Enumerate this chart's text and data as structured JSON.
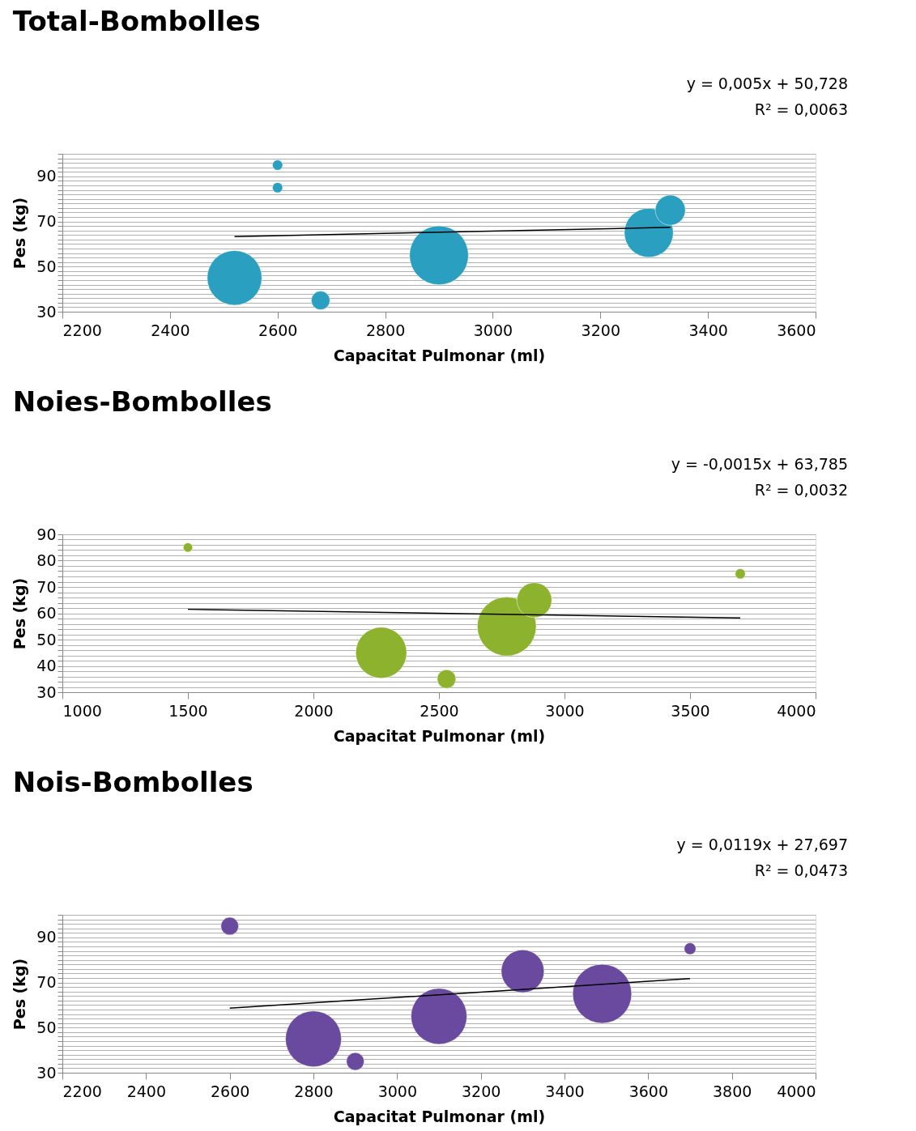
{
  "chart_data": [
    {
      "type": "bubble",
      "title": "Total-Bombolles",
      "xlabel": "Capacitat Pulmonar (ml)",
      "ylabel": "Pes (kg)",
      "annotations": [
        "y = 0,005x + 50,728",
        "R² = 0,0063"
      ],
      "xlim": [
        2200,
        3600
      ],
      "xticks": [
        2200,
        2400,
        2600,
        2800,
        3000,
        3200,
        3400,
        3600
      ],
      "ylim": [
        30,
        100
      ],
      "yticks": [
        30,
        {
          "value": 32,
          "label": null
        },
        {
          "value": 34,
          "label": null
        },
        {
          "value": 36,
          "label": null
        },
        {
          "value": 38,
          "label": null
        },
        {
          "value": 40,
          "label": null
        },
        {
          "value": 42,
          "label": null
        },
        {
          "value": 44,
          "label": null
        },
        {
          "value": 46,
          "label": null
        },
        {
          "value": 48,
          "label": null
        },
        50,
        {
          "value": 52,
          "label": null
        },
        {
          "value": 54,
          "label": null
        },
        {
          "value": 56,
          "label": null
        },
        {
          "value": 58,
          "label": null
        },
        {
          "value": 60,
          "label": null
        },
        {
          "value": 62,
          "label": null
        },
        {
          "value": 64,
          "label": null
        },
        {
          "value": 66,
          "label": null
        },
        {
          "value": 68,
          "label": null
        },
        70,
        {
          "value": 72,
          "label": null
        },
        {
          "value": 74,
          "label": null
        },
        {
          "value": 76,
          "label": null
        },
        {
          "value": 78,
          "label": null
        },
        {
          "value": 80,
          "label": null
        },
        {
          "value": 82,
          "label": null
        },
        {
          "value": 84,
          "label": null
        },
        {
          "value": 86,
          "label": null
        },
        {
          "value": 88,
          "label": null
        },
        90,
        {
          "value": 92,
          "label": null
        },
        {
          "value": 94,
          "label": null
        },
        {
          "value": 96,
          "label": null
        },
        {
          "value": 98,
          "label": null
        },
        {
          "value": 100,
          "label": null
        }
      ],
      "grid": "y",
      "legend": false,
      "series": [
        {
          "type": "bubble",
          "color": "#2b9fc0",
          "x": [
            2600,
            2600,
            2520,
            2680,
            2900,
            3290,
            3330
          ],
          "values": [
            95,
            85,
            45,
            35,
            55,
            65,
            75
          ],
          "sizes": [
            0.03,
            0.03,
            0.86,
            0.1,
            1,
            0.69,
            0.26
          ]
        },
        {
          "type": "line",
          "color": "#000000",
          "x": [
            2520,
            3330
          ],
          "values": [
            63.3,
            67.4
          ]
        }
      ]
    },
    {
      "type": "bubble",
      "title": "Noies-Bombolles",
      "xlabel": "Capacitat Pulmonar (ml)",
      "ylabel": "Pes (kg)",
      "annotations": [
        "y = -0,0015x + 63,785",
        "R² = 0,0032"
      ],
      "xlim": [
        1000,
        4000
      ],
      "xticks": [
        1000,
        1500,
        2000,
        2500,
        3000,
        3500,
        4000
      ],
      "ylim": [
        30,
        90
      ],
      "yticks": [
        30,
        {
          "value": 32,
          "label": null
        },
        {
          "value": 34,
          "label": null
        },
        {
          "value": 36,
          "label": null
        },
        {
          "value": 38,
          "label": null
        },
        40,
        {
          "value": 42,
          "label": null
        },
        {
          "value": 44,
          "label": null
        },
        {
          "value": 46,
          "label": null
        },
        {
          "value": 48,
          "label": null
        },
        50,
        {
          "value": 52,
          "label": null
        },
        {
          "value": 54,
          "label": null
        },
        {
          "value": 56,
          "label": null
        },
        {
          "value": 58,
          "label": null
        },
        60,
        {
          "value": 62,
          "label": null
        },
        {
          "value": 64,
          "label": null
        },
        {
          "value": 66,
          "label": null
        },
        {
          "value": 68,
          "label": null
        },
        70,
        {
          "value": 72,
          "label": null
        },
        {
          "value": 74,
          "label": null
        },
        {
          "value": 76,
          "label": null
        },
        {
          "value": 78,
          "label": null
        },
        80,
        {
          "value": 82,
          "label": null
        },
        {
          "value": 84,
          "label": null
        },
        {
          "value": 86,
          "label": null
        },
        {
          "value": 88,
          "label": null
        },
        90
      ],
      "grid": "y",
      "legend": false,
      "series": [
        {
          "type": "bubble",
          "color": "#8db32e",
          "x": [
            1500,
            2270,
            2530,
            2770,
            2880,
            3700
          ],
          "values": [
            85,
            45,
            35,
            55,
            65,
            75
          ],
          "sizes": [
            0.025,
            0.75,
            0.1,
            1,
            0.35,
            0.03
          ]
        },
        {
          "type": "line",
          "color": "#000000",
          "x": [
            1500,
            3700
          ],
          "values": [
            61.5,
            58.2
          ]
        }
      ]
    },
    {
      "type": "bubble",
      "title": "Nois-Bombolles",
      "xlabel": "Capacitat Pulmonar (ml)",
      "ylabel": "Pes (kg)",
      "annotations": [
        "y = 0,0119x + 27,697",
        "R² = 0,0473"
      ],
      "xlim": [
        2200,
        4000
      ],
      "xticks": [
        2200,
        2400,
        2600,
        2800,
        3000,
        3200,
        3400,
        3600,
        3800,
        4000
      ],
      "ylim": [
        30,
        100
      ],
      "yticks": [
        30,
        {
          "value": 32,
          "label": null
        },
        {
          "value": 34,
          "label": null
        },
        {
          "value": 36,
          "label": null
        },
        {
          "value": 38,
          "label": null
        },
        {
          "value": 40,
          "label": null
        },
        {
          "value": 42,
          "label": null
        },
        {
          "value": 44,
          "label": null
        },
        {
          "value": 46,
          "label": null
        },
        {
          "value": 48,
          "label": null
        },
        50,
        {
          "value": 52,
          "label": null
        },
        {
          "value": 54,
          "label": null
        },
        {
          "value": 56,
          "label": null
        },
        {
          "value": 58,
          "label": null
        },
        {
          "value": 60,
          "label": null
        },
        {
          "value": 62,
          "label": null
        },
        {
          "value": 64,
          "label": null
        },
        {
          "value": 66,
          "label": null
        },
        {
          "value": 68,
          "label": null
        },
        70,
        {
          "value": 72,
          "label": null
        },
        {
          "value": 74,
          "label": null
        },
        {
          "value": 76,
          "label": null
        },
        {
          "value": 78,
          "label": null
        },
        {
          "value": 80,
          "label": null
        },
        {
          "value": 82,
          "label": null
        },
        {
          "value": 84,
          "label": null
        },
        {
          "value": 86,
          "label": null
        },
        {
          "value": 88,
          "label": null
        },
        90,
        {
          "value": 92,
          "label": null
        },
        {
          "value": 94,
          "label": null
        },
        {
          "value": 96,
          "label": null
        },
        {
          "value": 98,
          "label": null
        },
        {
          "value": 100,
          "label": null
        }
      ],
      "grid": "y",
      "legend": false,
      "series": [
        {
          "type": "bubble",
          "color": "#6a4a9e",
          "x": [
            2600,
            2800,
            2900,
            3100,
            3300,
            3490,
            3700
          ],
          "values": [
            95,
            45,
            35,
            55,
            75,
            65,
            85
          ],
          "sizes": [
            0.09,
            0.9,
            0.09,
            0.9,
            0.53,
            1,
            0.04
          ]
        },
        {
          "type": "line",
          "color": "#000000",
          "x": [
            2600,
            3700
          ],
          "values": [
            58.6,
            71.7
          ]
        }
      ]
    }
  ]
}
